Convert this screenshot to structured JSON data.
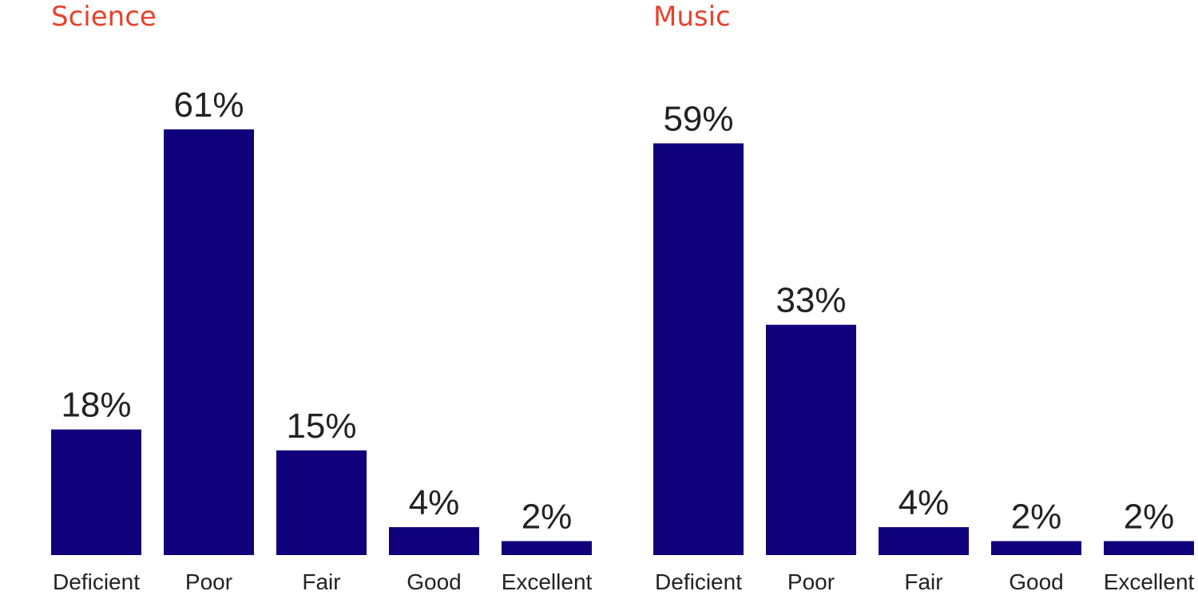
{
  "colors": {
    "title": "#e8412c",
    "bar": "#10007c",
    "text": "#222222"
  },
  "chart_data": [
    {
      "type": "bar",
      "title": "Science",
      "categories": [
        "Deficient",
        "Poor",
        "Fair",
        "Good",
        "Excellent"
      ],
      "values": [
        18,
        61,
        15,
        4,
        2
      ],
      "value_labels": [
        "18%",
        "61%",
        "15%",
        "4%",
        "2%"
      ],
      "ylim": [
        0,
        61
      ],
      "xlabel": "",
      "ylabel": "",
      "grid": false,
      "legend": "none"
    },
    {
      "type": "bar",
      "title": "Music",
      "categories": [
        "Deficient",
        "Poor",
        "Fair",
        "Good",
        "Excellent"
      ],
      "values": [
        59,
        33,
        4,
        2,
        2
      ],
      "value_labels": [
        "59%",
        "33%",
        "4%",
        "2%",
        "2%"
      ],
      "ylim": [
        0,
        61
      ],
      "xlabel": "",
      "ylabel": "",
      "grid": false,
      "legend": "none"
    }
  ]
}
